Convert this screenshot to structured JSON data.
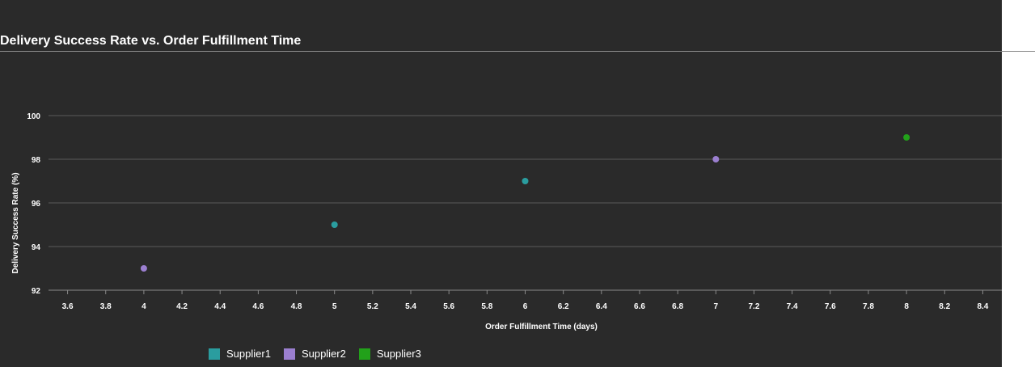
{
  "title": "Delivery Success Rate vs. Order Fulfillment Time",
  "legend_items": [
    {
      "label": "Supplier1",
      "color": "#2a9d9f"
    },
    {
      "label": "Supplier2",
      "color": "#9b7fd0"
    },
    {
      "label": "Supplier3",
      "color": "#22a11a"
    }
  ],
  "chart_data": {
    "type": "scatter",
    "title": "Delivery Success Rate vs. Order Fulfillment Time",
    "xlabel": "Order Fulfillment Time (days)",
    "ylabel": "Delivery Success Rate (%)",
    "xlim": [
      3.5,
      8.5
    ],
    "ylim": [
      92,
      100
    ],
    "xticks": [
      "3.6",
      "3.8",
      "4",
      "4.2",
      "4.4",
      "4.6",
      "4.8",
      "5",
      "5.2",
      "5.4",
      "5.6",
      "5.8",
      "6",
      "6.2",
      "6.4",
      "6.6",
      "6.8",
      "7",
      "7.2",
      "7.4",
      "7.6",
      "7.8",
      "8",
      "8.2",
      "8.4"
    ],
    "yticks": [
      "92",
      "94",
      "96",
      "98",
      "100"
    ],
    "grid": "horizontal",
    "legend": "bottom-left",
    "series": [
      {
        "name": "Supplier1",
        "color": "#2a9d9f",
        "points": [
          {
            "x": 5,
            "y": 95
          },
          {
            "x": 6,
            "y": 97
          }
        ]
      },
      {
        "name": "Supplier2",
        "color": "#9b7fd0",
        "points": [
          {
            "x": 4,
            "y": 93
          },
          {
            "x": 7,
            "y": 98
          }
        ]
      },
      {
        "name": "Supplier3",
        "color": "#22a11a",
        "points": [
          {
            "x": 8,
            "y": 99
          }
        ]
      }
    ]
  }
}
